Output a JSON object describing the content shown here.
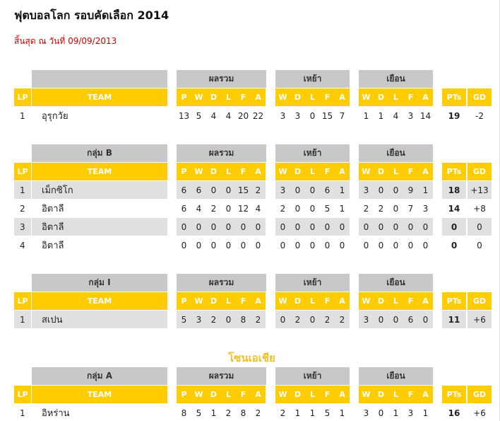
{
  "title": "ฟุตบอลโลก รอบคัดเลือก 2014",
  "subtitle": "สิ้นสุด ณ วันที่ 09/09/2013",
  "section_headers": [
    "ผลรวม",
    "เหย้า",
    "เยือน"
  ],
  "column_headers": [
    "LP",
    "TEAM",
    "P",
    "W",
    "D",
    "L",
    "F",
    "A",
    "W",
    "D",
    "L",
    "F",
    "A",
    "W",
    "D",
    "L",
    "F",
    "A",
    "PTs",
    "GD"
  ],
  "zone_title": "โซนเอเชีย",
  "tables": [
    {
      "rows": [
        [
          1,
          "อุรุกวัย",
          13,
          5,
          4,
          4,
          20,
          22,
          3,
          3,
          0,
          15,
          7,
          1,
          1,
          4,
          3,
          14,
          19,
          -2
        ]
      ]
    },
    {
      "group": "กลุ่ม B",
      "rows": [
        [
          1,
          "เม็กซิโก",
          6,
          6,
          0,
          0,
          15,
          2,
          3,
          0,
          0,
          6,
          1,
          3,
          0,
          0,
          9,
          1,
          18,
          "+13"
        ],
        [
          2,
          "อิตาลี",
          6,
          4,
          2,
          0,
          12,
          4,
          2,
          0,
          0,
          5,
          1,
          2,
          2,
          0,
          7,
          3,
          14,
          "+8"
        ],
        [
          3,
          "อิตาลี",
          0,
          0,
          0,
          0,
          0,
          0,
          0,
          0,
          0,
          0,
          0,
          0,
          0,
          0,
          0,
          0,
          0,
          0
        ],
        [
          4,
          "อิตาลี",
          0,
          0,
          0,
          0,
          0,
          0,
          0,
          0,
          0,
          0,
          0,
          0,
          0,
          0,
          0,
          0,
          0,
          0
        ]
      ]
    },
    {
      "group": "กลุ่ม I",
      "rows": [
        [
          1,
          "สเปน",
          5,
          3,
          2,
          0,
          8,
          2,
          0,
          2,
          0,
          2,
          2,
          3,
          0,
          0,
          6,
          0,
          11,
          "+6"
        ]
      ]
    },
    {
      "group": "กลุ่ม A",
      "rows": [
        [
          1,
          "อิหร่าน",
          8,
          5,
          1,
          2,
          8,
          2,
          2,
          1,
          1,
          5,
          1,
          3,
          0,
          1,
          3,
          1,
          16,
          "+6"
        ]
      ]
    }
  ]
}
